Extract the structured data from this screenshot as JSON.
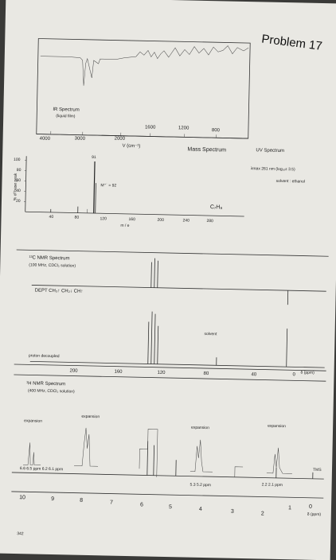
{
  "header": {
    "title": "Problem 17"
  },
  "ir": {
    "label": "IR Spectrum",
    "sub": "(liquid film)",
    "ticks": [
      "4000",
      "3000",
      "2000",
      "1600",
      "1200",
      "800"
    ],
    "axis_label": "V (cm⁻¹)"
  },
  "mass": {
    "title": "Mass Spectrum",
    "y_ticks": [
      "100",
      "80",
      "60",
      "40",
      "20"
    ],
    "y_label": "% of base peak",
    "x_ticks": [
      "40",
      "80",
      "120",
      "160",
      "200",
      "240",
      "280"
    ],
    "x_label": "m / e",
    "peak_label": "91",
    "mplus_label": "M⁺˙ = 92",
    "formula": "C₇H₈"
  },
  "uv": {
    "title": "UV Spectrum",
    "lambda": "λmax 261 nm (log₁₀ε 3.5)",
    "solvent": "solvent : ethanol"
  },
  "c13": {
    "title": "¹³C NMR Spectrum",
    "sub": "(100 MHz, CDCl₃ solution)",
    "dept": "DEPT CH₃↑ CH₂↓ CH↑",
    "decoupled": "proton decoupled",
    "solvent": "solvent",
    "ticks": [
      "200",
      "160",
      "120",
      "80",
      "40",
      "0"
    ],
    "delta": "δ (ppm)"
  },
  "h1": {
    "title": "¹H NMR Spectrum",
    "sub": "(400 MHz, CDCl₃ solution)",
    "exp_labels": [
      "expansion",
      "expansion",
      "expansion",
      "expansion"
    ],
    "exp1_ticks": "6.6   6.5 ppm   6.2   6.1   ppm",
    "exp2_ticks": "5.3   5.2 ppm",
    "exp3_ticks": "2.2   2.1 ppm",
    "tms": "TMS",
    "ticks": [
      "10",
      "9",
      "8",
      "7",
      "6",
      "5",
      "4",
      "3",
      "2",
      "1",
      "0"
    ],
    "delta": "δ (ppm)"
  },
  "footer": {
    "page_number": "342"
  }
}
